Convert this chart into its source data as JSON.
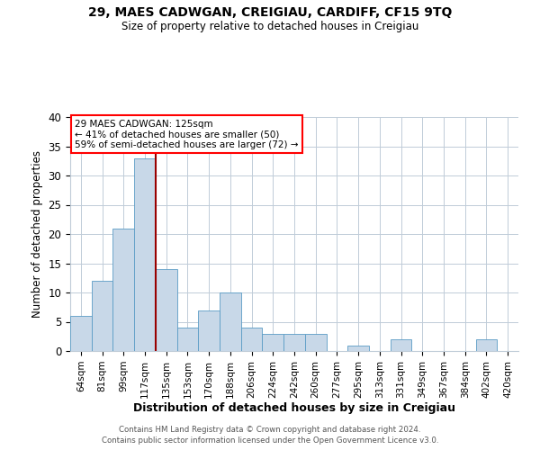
{
  "title": "29, MAES CADWGAN, CREIGIAU, CARDIFF, CF15 9TQ",
  "subtitle": "Size of property relative to detached houses in Creigiau",
  "xlabel": "Distribution of detached houses by size in Creigiau",
  "ylabel": "Number of detached properties",
  "categories": [
    "64sqm",
    "81sqm",
    "99sqm",
    "117sqm",
    "135sqm",
    "153sqm",
    "170sqm",
    "188sqm",
    "206sqm",
    "224sqm",
    "242sqm",
    "260sqm",
    "277sqm",
    "295sqm",
    "313sqm",
    "331sqm",
    "349sqm",
    "367sqm",
    "384sqm",
    "402sqm",
    "420sqm"
  ],
  "values": [
    6,
    12,
    21,
    33,
    14,
    4,
    7,
    10,
    4,
    3,
    3,
    3,
    0,
    1,
    0,
    2,
    0,
    0,
    0,
    2,
    0
  ],
  "bar_color": "#c8d8e8",
  "bar_edge_color": "#5a9cc5",
  "red_line_x": 3.5,
  "annotation_line1": "29 MAES CADWGAN: 125sqm",
  "annotation_line2": "← 41% of detached houses are smaller (50)",
  "annotation_line3": "59% of semi-detached houses are larger (72) →",
  "ylim": [
    0,
    40
  ],
  "yticks": [
    0,
    5,
    10,
    15,
    20,
    25,
    30,
    35,
    40
  ],
  "footer_line1": "Contains HM Land Registry data © Crown copyright and database right 2024.",
  "footer_line2": "Contains public sector information licensed under the Open Government Licence v3.0.",
  "background_color": "#ffffff",
  "grid_color": "#c0ccd8"
}
